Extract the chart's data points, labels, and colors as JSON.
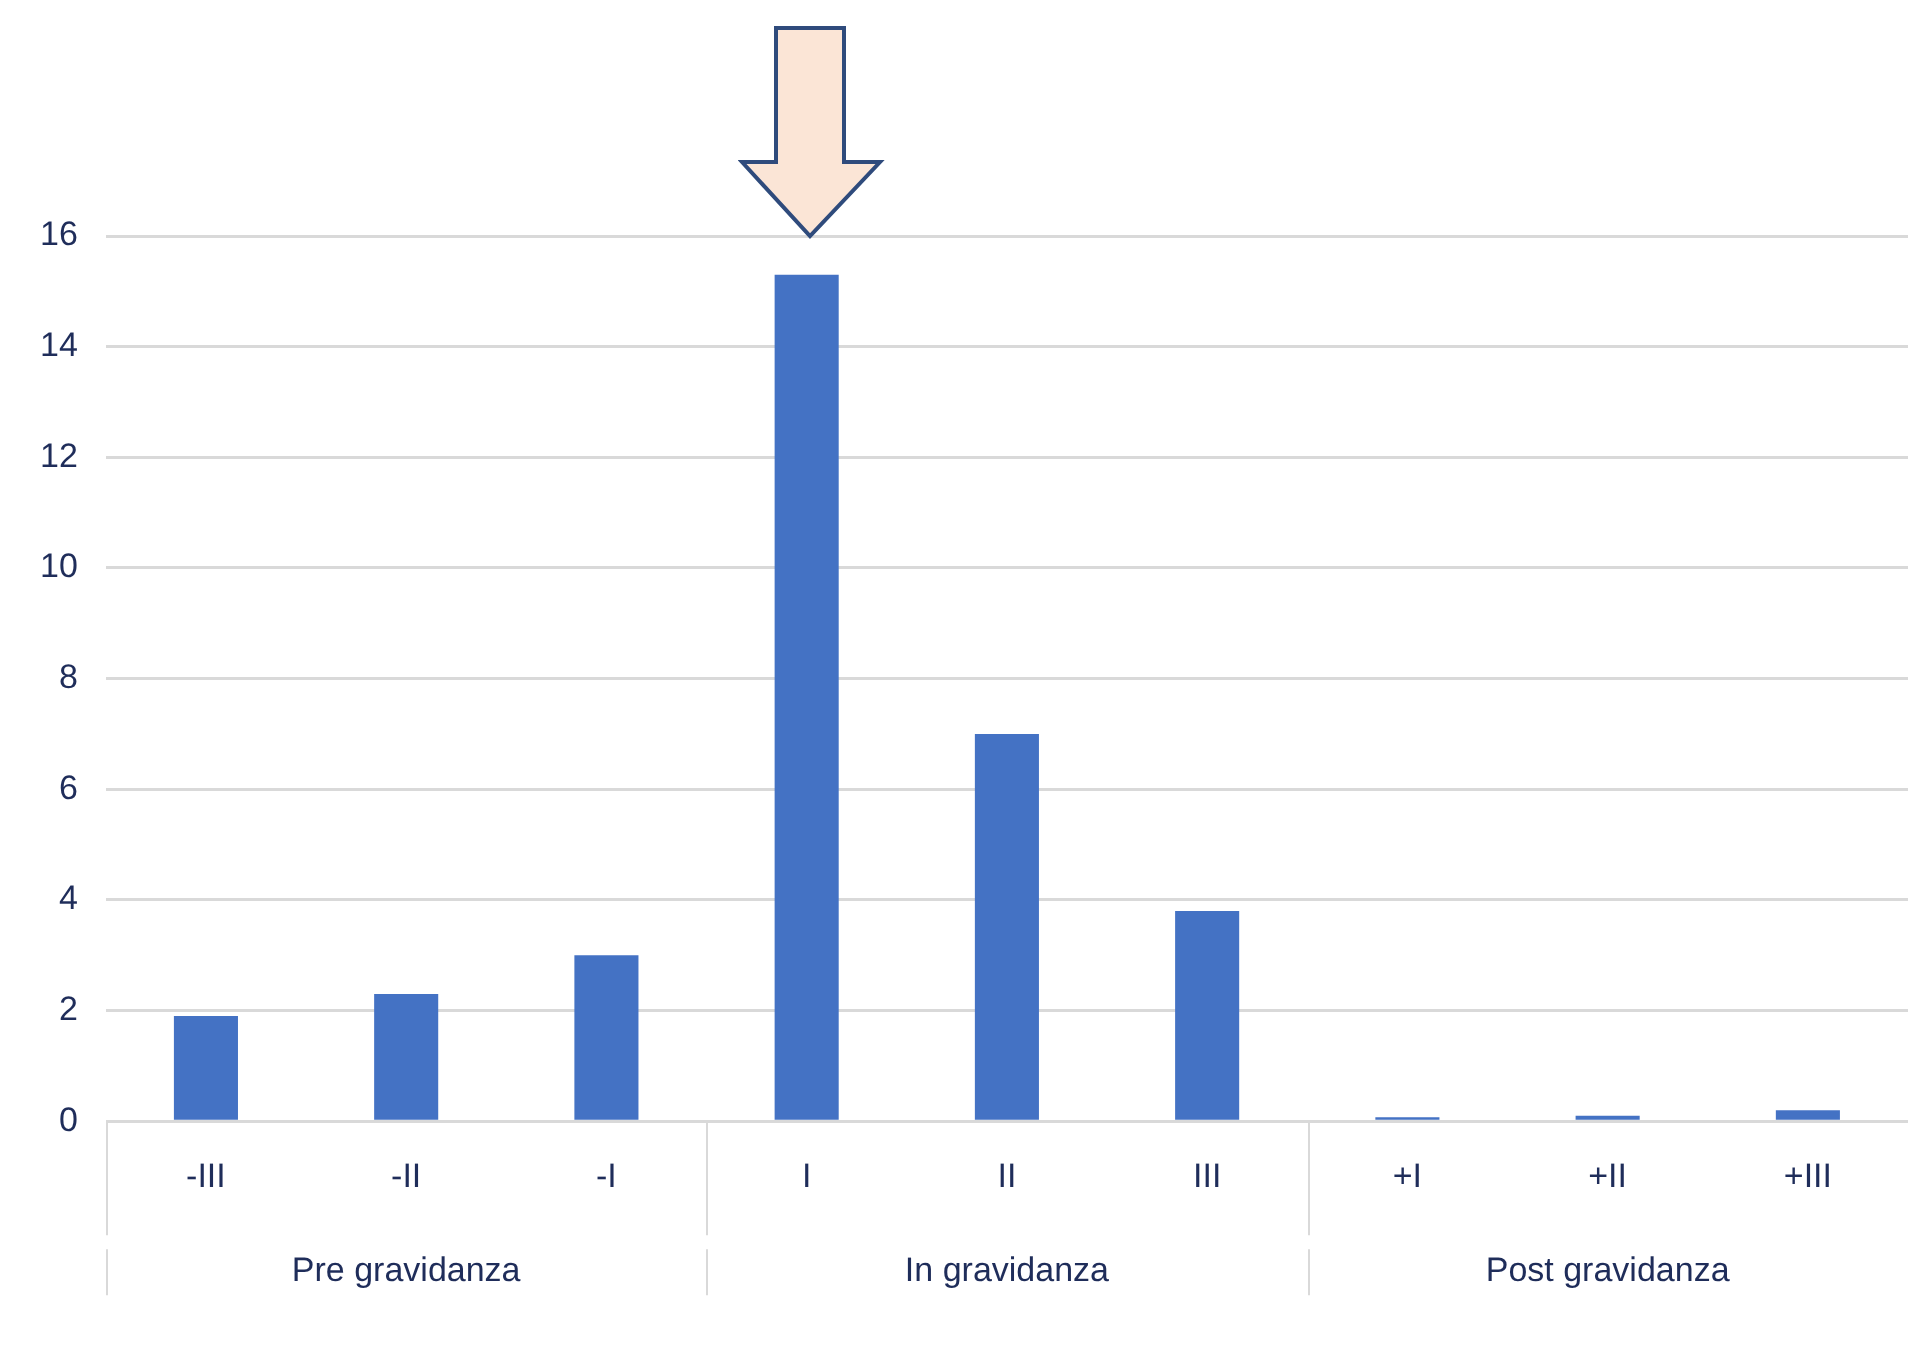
{
  "chart_data": {
    "type": "bar",
    "categories": [
      "-III",
      "-II",
      "-I",
      "I",
      "II",
      "III",
      "+I",
      "+II",
      "+III"
    ],
    "values": [
      1.9,
      2.3,
      3.0,
      15.3,
      7.0,
      3.8,
      0.07,
      0.1,
      0.2
    ],
    "color": "#4472c4",
    "ylim": [
      0,
      16
    ],
    "yticks": [
      0,
      2,
      4,
      6,
      8,
      10,
      12,
      14,
      16
    ],
    "grid": "y",
    "legend": false,
    "annotations": [
      "Pre gravidanza",
      "In gravidanza",
      "Post gravidanza"
    ]
  }
}
